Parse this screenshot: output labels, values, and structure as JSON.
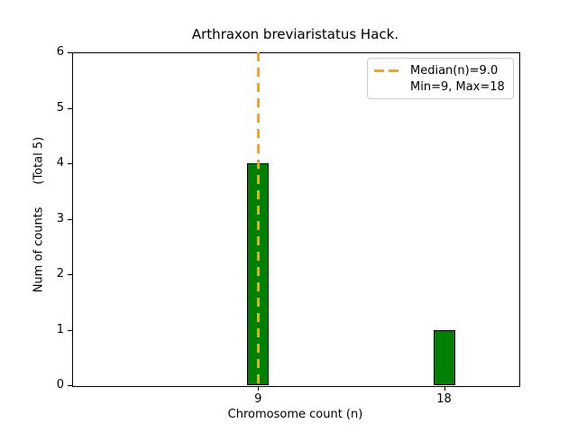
{
  "chart_data": {
    "type": "bar",
    "title": "Arthraxon breviaristatus Hack.",
    "xlabel": "Chromosome count (n)",
    "ylabel": "Num of counts      (Total 5)",
    "categories": [
      9,
      18
    ],
    "values": [
      4,
      1
    ],
    "total_counts": 5,
    "bar_color": "#008000",
    "bar_edge_color": "#000000",
    "median_line": {
      "x": 9.0,
      "color": "#FFA500",
      "style": "dashed"
    },
    "legend": {
      "entries": [
        "Median(n)=9.0",
        "Min=9, Max=18"
      ],
      "position": "upper right"
    },
    "stats": {
      "median": 9.0,
      "min": 9,
      "max": 18
    },
    "xlim": [
      0,
      21.6
    ],
    "ylim": [
      0,
      6
    ],
    "xticks": [
      9,
      18
    ],
    "yticks": [
      0,
      1,
      2,
      3,
      4,
      5,
      6
    ],
    "grid": false
  }
}
